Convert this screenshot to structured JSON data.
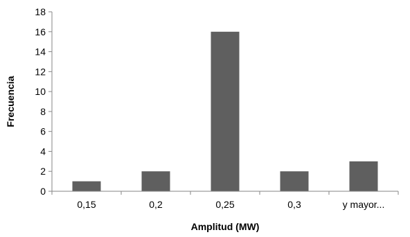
{
  "chart_data": {
    "type": "bar",
    "title": "",
    "xlabel": "Amplitud (MW)",
    "ylabel": "Frecuencia",
    "categories": [
      "0,15",
      "0,2",
      "0,25",
      "0,3",
      "y mayor..."
    ],
    "values": [
      1,
      2,
      16,
      2,
      3
    ],
    "ylim": [
      0,
      18
    ],
    "yticks": [
      0,
      2,
      4,
      6,
      8,
      10,
      12,
      14,
      16,
      18
    ],
    "grid": false,
    "legend": "none",
    "bar_color": "#5f5f5f",
    "axis_color": "#868686"
  }
}
